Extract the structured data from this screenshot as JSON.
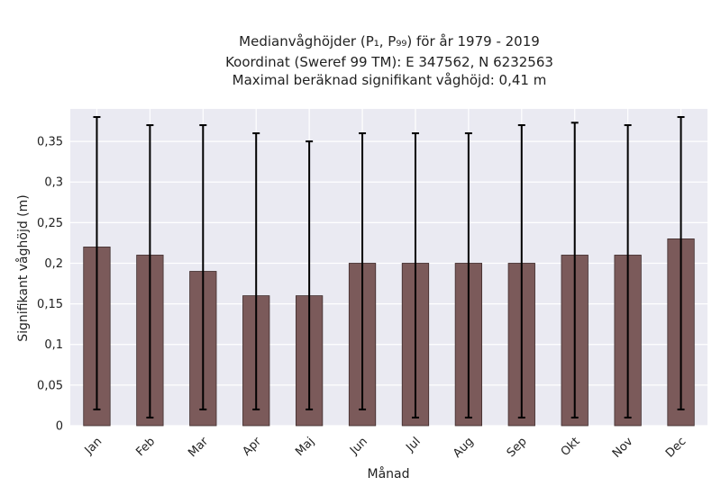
{
  "chart_data": {
    "type": "bar",
    "title_lines": [
      "Medianvåghöjder (P₁, P₉₉) för år 1979 - 2019",
      "Koordinat (Sweref 99 TM): E 347562, N 6232563",
      "Maximal beräknad signifikant våghöjd: 0,41 m"
    ],
    "xlabel": "Månad",
    "ylabel": "Signifikant våghöjd (m)",
    "categories": [
      "Jan",
      "Feb",
      "Mar",
      "Apr",
      "Maj",
      "Jun",
      "Jul",
      "Aug",
      "Sep",
      "Okt",
      "Nov",
      "Dec"
    ],
    "values": [
      0.22,
      0.21,
      0.19,
      0.16,
      0.16,
      0.2,
      0.2,
      0.2,
      0.2,
      0.21,
      0.21,
      0.23
    ],
    "err_low": [
      0.02,
      0.01,
      0.02,
      0.02,
      0.02,
      0.02,
      0.01,
      0.01,
      0.01,
      0.01,
      0.01,
      0.02
    ],
    "err_high": [
      0.38,
      0.37,
      0.37,
      0.36,
      0.35,
      0.36,
      0.36,
      0.36,
      0.37,
      0.373,
      0.37,
      0.38
    ],
    "yticks": [
      0,
      0.05,
      0.1,
      0.15,
      0.2,
      0.25,
      0.3,
      0.35
    ],
    "ytick_labels": [
      "0",
      "0,05",
      "0,1",
      "0,15",
      "0,2",
      "0,25",
      "0,3",
      "0,35"
    ],
    "ylim": [
      0,
      0.39
    ],
    "grid": true,
    "colors": {
      "bar": "#7b5a5a",
      "bar_edge": "#3e2b2b",
      "error_bar": "#000000",
      "plot_background": "#eaeaf2",
      "grid": "#ffffff"
    }
  }
}
